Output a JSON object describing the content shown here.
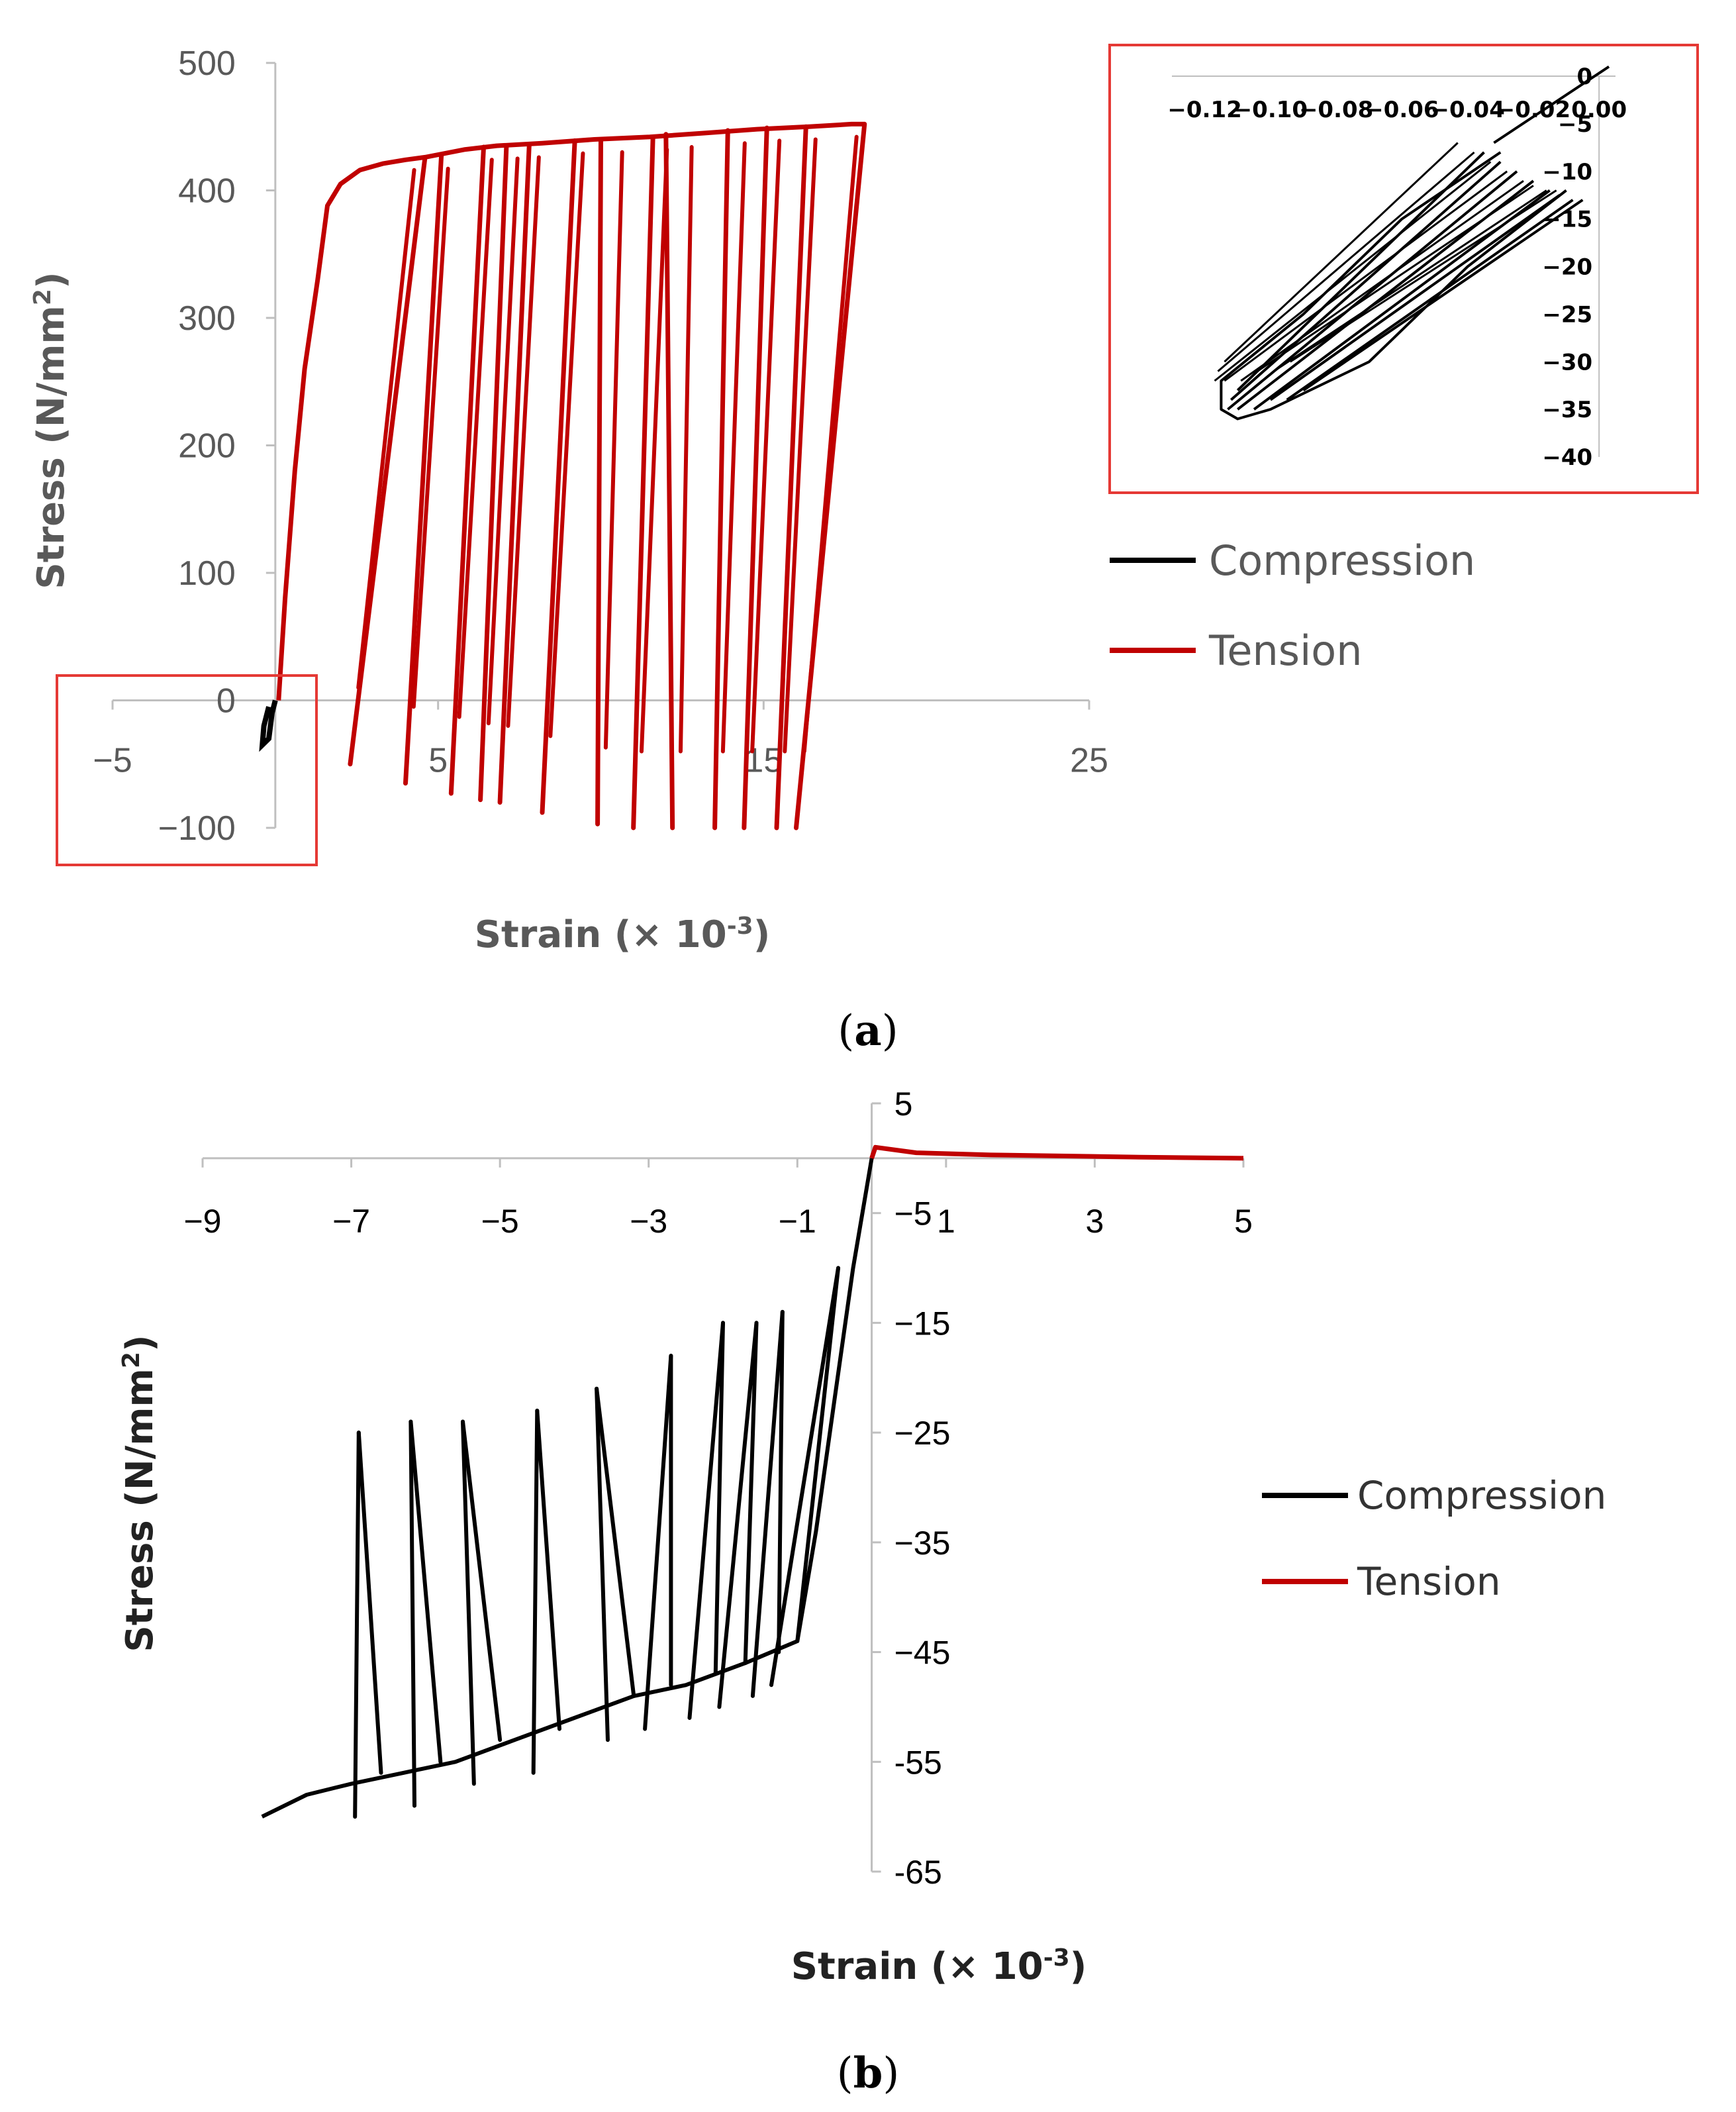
{
  "colors": {
    "compression": "#000000",
    "tension": "#c00000",
    "axis": "#bfbfbf",
    "inset_border": "#e53935"
  },
  "chart_data": [
    {
      "panel": "(a)",
      "panel_letter": "a",
      "type": "line",
      "xlabel": "Strain (× 10",
      "xlabel_exp": "-3",
      "xlabel_close": ")",
      "ylabel": "Stress (N/mm",
      "ylabel_exp": "2",
      "ylabel_close": ")",
      "xlim": [
        -5,
        25
      ],
      "ylim": [
        -100,
        500
      ],
      "x_ticks": [
        "−5",
        "5",
        "15",
        "25"
      ],
      "x_tick_values": [
        -5,
        5,
        15,
        25
      ],
      "y_ticks": [
        "500",
        "400",
        "300",
        "200",
        "100",
        "0",
        "−100"
      ],
      "y_tick_values": [
        500,
        400,
        300,
        200,
        100,
        0,
        -100
      ],
      "legend": [
        "Compression",
        "Tension"
      ],
      "legend_position": "right",
      "series": [
        {
          "name": "Tension",
          "envelope": [
            [
              0.1,
              0
            ],
            [
              0.3,
              80
            ],
            [
              0.6,
              180
            ],
            [
              0.9,
              260
            ],
            [
              1.3,
              330
            ],
            [
              1.6,
              388
            ],
            [
              2,
              405
            ],
            [
              2.6,
              416
            ],
            [
              3.3,
              421
            ],
            [
              4,
              424
            ],
            [
              4.6,
              426
            ],
            [
              5.8,
              432
            ],
            [
              6.8,
              435
            ],
            [
              8.2,
              437
            ],
            [
              9.8,
              440
            ],
            [
              11.5,
              442
            ],
            [
              13.2,
              445
            ],
            [
              14.8,
              448
            ],
            [
              16.4,
              450
            ],
            [
              17.7,
              452
            ],
            [
              18.1,
              452
            ]
          ],
          "unloading_cycles": [
            {
              "x_peak": 4.6,
              "y_peak": 426,
              "x_min": 2.3,
              "y_min": -50
            },
            {
              "x_peak": 5.1,
              "y_peak": 427,
              "x_min": 4.0,
              "y_min": -65
            },
            {
              "x_peak": 6.4,
              "y_peak": 434,
              "x_min": 5.4,
              "y_min": -73
            },
            {
              "x_peak": 7.1,
              "y_peak": 435,
              "x_min": 6.3,
              "y_min": -78
            },
            {
              "x_peak": 7.8,
              "y_peak": 436,
              "x_min": 6.9,
              "y_min": -80
            },
            {
              "x_peak": 9.2,
              "y_peak": 439,
              "x_min": 8.2,
              "y_min": -88
            },
            {
              "x_peak": 10.0,
              "y_peak": 440,
              "x_min": 9.9,
              "y_min": -97
            },
            {
              "x_peak": 11.6,
              "y_peak": 442,
              "x_min": 11.0,
              "y_min": -100
            },
            {
              "x_peak": 12.0,
              "y_peak": 444,
              "x_min": 12.2,
              "y_min": -100
            },
            {
              "x_peak": 13.9,
              "y_peak": 447,
              "x_min": 13.5,
              "y_min": -100
            },
            {
              "x_peak": 15.1,
              "y_peak": 449,
              "x_min": 14.4,
              "y_min": -100
            },
            {
              "x_peak": 16.3,
              "y_peak": 450,
              "x_min": 15.4,
              "y_min": -100
            },
            {
              "x_peak": 18.1,
              "y_peak": 452,
              "x_min": 16.0,
              "y_min": -100
            }
          ]
        },
        {
          "name": "Compression",
          "points": [
            [
              -0.2,
              -5
            ],
            [
              -0.35,
              -20
            ],
            [
              -0.4,
              -35
            ],
            [
              -0.2,
              -30
            ],
            [
              -0.1,
              -10
            ],
            [
              0,
              0
            ]
          ]
        }
      ],
      "inset": {
        "x_ticks": [
          "−0.12",
          "−0.10",
          "−0.08",
          "−0.06",
          "−0.04",
          "−0.02",
          "0.00"
        ],
        "x_tick_values": [
          -0.12,
          -0.1,
          -0.08,
          -0.06,
          -0.04,
          -0.02,
          0.0
        ],
        "y_ticks": [
          "0",
          "−5",
          "−10",
          "−15",
          "−20",
          "−25",
          "−30",
          "−35",
          "−40"
        ],
        "y_tick_values": [
          0,
          -5,
          -10,
          -15,
          -20,
          -25,
          -30,
          -35,
          -40
        ],
        "xlim": [
          -0.13,
          0.005
        ],
        "ylim": [
          -40,
          0
        ],
        "series_name": "Compression",
        "envelope_peak": [
          -0.115,
          -35
        ],
        "cycles": [
          {
            "x_start": -0.035,
            "y_start": -8,
            "x_end": -0.11,
            "y_end": -33
          },
          {
            "x_start": -0.03,
            "y_start": -9,
            "x_end": -0.112,
            "y_end": -34
          },
          {
            "x_start": -0.025,
            "y_start": -10,
            "x_end": -0.113,
            "y_end": -35
          },
          {
            "x_start": -0.02,
            "y_start": -11,
            "x_end": -0.11,
            "y_end": -35
          },
          {
            "x_start": -0.015,
            "y_start": -12,
            "x_end": -0.105,
            "y_end": -35
          },
          {
            "x_start": -0.012,
            "y_start": -12.5,
            "x_end": -0.1,
            "y_end": -34
          },
          {
            "x_start": -0.008,
            "y_start": -13,
            "x_end": -0.095,
            "y_end": -34
          },
          {
            "x_start": -0.005,
            "y_start": -13,
            "x_end": -0.09,
            "y_end": -33
          }
        ]
      }
    },
    {
      "panel": "(b)",
      "panel_letter": "b",
      "type": "line",
      "xlabel": "Strain (× 10",
      "xlabel_exp": "-3",
      "xlabel_close": ")",
      "ylabel": "Stress (N/mm",
      "ylabel_exp": "2",
      "ylabel_close": ")",
      "xlim": [
        -9,
        5
      ],
      "ylim": [
        -65,
        5
      ],
      "x_ticks": [
        "−9",
        "−7",
        "−5",
        "−3",
        "−1",
        "1",
        "3",
        "5"
      ],
      "x_tick_values": [
        -9,
        -7,
        -5,
        -3,
        -1,
        1,
        3,
        5
      ],
      "y_ticks": [
        "5",
        "−5",
        "−15",
        "−25",
        "−35",
        "−45",
        "-55",
        "-65"
      ],
      "y_tick_values": [
        5,
        -5,
        -15,
        -25,
        -35,
        -45,
        -55,
        -65
      ],
      "legend": [
        "Compression",
        "Tension"
      ],
      "legend_position": "right",
      "series": [
        {
          "name": "Compression",
          "envelope": [
            [
              0,
              0
            ],
            [
              -0.25,
              -10
            ],
            [
              -0.5,
              -22
            ],
            [
              -0.75,
              -34
            ],
            [
              -1.0,
              -44
            ],
            [
              -1.7,
              -46
            ],
            [
              -2.5,
              -48
            ],
            [
              -3.2,
              -49
            ],
            [
              -4.0,
              -51
            ],
            [
              -4.8,
              -53
            ],
            [
              -5.6,
              -55
            ],
            [
              -6.3,
              -56
            ],
            [
              -7.0,
              -57
            ],
            [
              -7.6,
              -58
            ],
            [
              -8.2,
              -60
            ]
          ],
          "cycles": [
            {
              "x_peak": -1.0,
              "y_peak": -44,
              "x_top": -0.45,
              "y_top": -10
            },
            {
              "x_peak": -1.25,
              "y_peak": -45,
              "x_top": -1.2,
              "y_top": -14
            },
            {
              "x_peak": -1.7,
              "y_peak": -46,
              "x_top": -1.55,
              "y_top": -15
            },
            {
              "x_peak": -2.1,
              "y_peak": -47,
              "x_top": -2.0,
              "y_top": -15
            },
            {
              "x_peak": -2.7,
              "y_peak": -48,
              "x_top": -2.7,
              "y_top": -18
            },
            {
              "x_peak": -3.2,
              "y_peak": -49,
              "x_top": -3.7,
              "y_top": -21
            },
            {
              "x_peak": -4.2,
              "y_peak": -52,
              "x_top": -4.5,
              "y_top": -23
            },
            {
              "x_peak": -5.0,
              "y_peak": -53,
              "x_top": -5.5,
              "y_top": -24
            },
            {
              "x_peak": -5.8,
              "y_peak": -55,
              "x_top": -6.2,
              "y_top": -24
            },
            {
              "x_peak": -6.6,
              "y_peak": -56,
              "x_top": -6.9,
              "y_top": -25
            }
          ]
        },
        {
          "name": "Tension",
          "points": [
            [
              0,
              0
            ],
            [
              0.05,
              1.0
            ],
            [
              0.6,
              0.5
            ],
            [
              1.6,
              0.3
            ],
            [
              2.6,
              0.2
            ],
            [
              3.6,
              0.1
            ],
            [
              5.0,
              0
            ]
          ]
        }
      ]
    }
  ]
}
